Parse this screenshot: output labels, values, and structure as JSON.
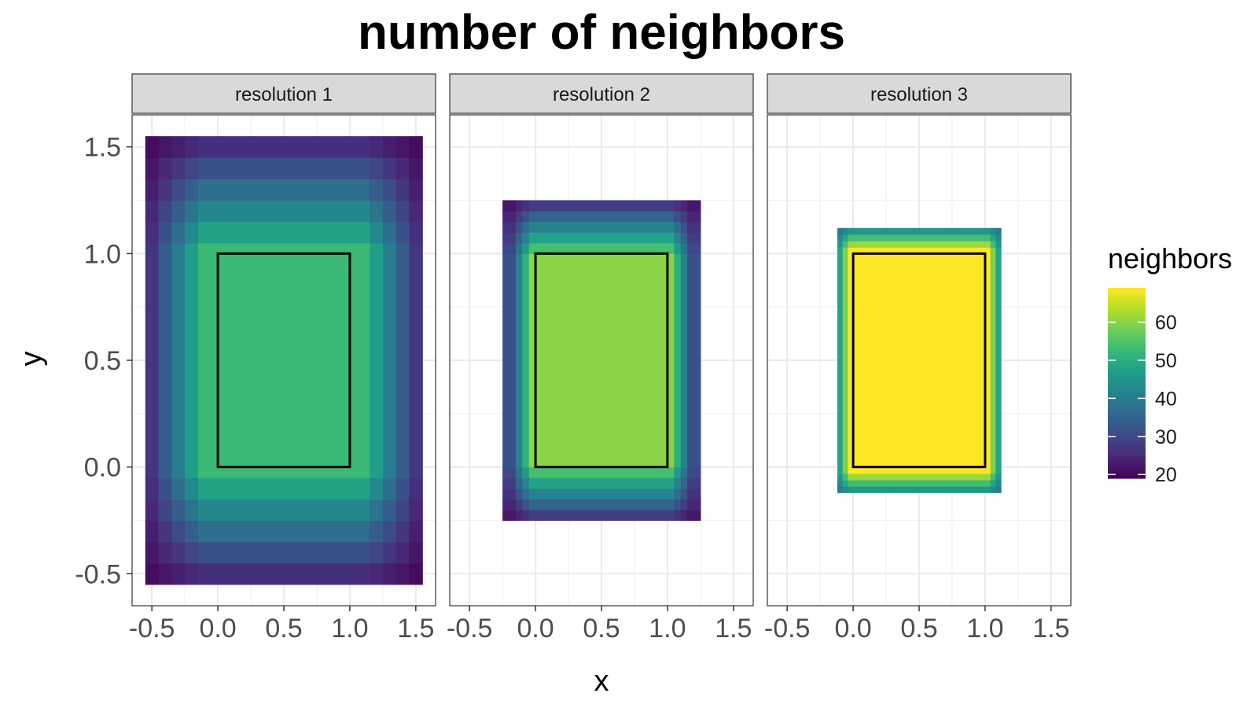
{
  "chart_data": {
    "type": "heatmap",
    "title": "number of neighbors",
    "xlabel": "x",
    "ylabel": "y",
    "xlim": [
      -0.65,
      1.65
    ],
    "ylim": [
      -0.65,
      1.65
    ],
    "x_ticks": [
      "-0.5",
      "0.0",
      "0.5",
      "1.0",
      "1.5"
    ],
    "y_ticks": [
      "-0.5",
      "0.0",
      "0.5",
      "1.0",
      "1.5"
    ],
    "x_tick_values": [
      -0.5,
      0,
      0.5,
      1,
      1.5
    ],
    "y_tick_values": [
      -0.5,
      0,
      0.5,
      1,
      1.5
    ],
    "grid": true,
    "reference_rectangle": {
      "x": [
        0,
        1
      ],
      "y": [
        0,
        1
      ]
    },
    "legend": {
      "title": "neighbors",
      "position": "right",
      "colormap": "viridis",
      "range": [
        19,
        69
      ],
      "ticks": [
        20,
        30,
        40,
        50,
        60
      ],
      "tick_labels": [
        "20",
        "30",
        "40",
        "50",
        "60"
      ]
    },
    "panels": [
      {
        "label": "resolution 1",
        "extent": {
          "x": [
            -0.55,
            1.55
          ],
          "y": [
            -0.55,
            1.55
          ]
        },
        "x_bands": [
          -0.55,
          -0.45,
          -0.35,
          -0.25,
          -0.15,
          1.15,
          1.25,
          1.35,
          1.45,
          1.55
        ],
        "y_bands": [
          -0.55,
          -0.45,
          -0.35,
          -0.25,
          -0.15,
          -0.05,
          1.05,
          1.15,
          1.25,
          1.35,
          1.45,
          1.55
        ],
        "x_values": [
          1,
          2,
          3,
          4,
          5,
          4,
          3,
          2,
          1
        ],
        "y_values": [
          1,
          2,
          3,
          4,
          5,
          6,
          5,
          4,
          3,
          2,
          1
        ],
        "neighbors_min": 19,
        "neighbors_max": 53
      },
      {
        "label": "resolution 2",
        "extent": {
          "x": [
            -0.25,
            1.25
          ],
          "y": [
            -0.25,
            1.25
          ]
        },
        "x_bands": [
          -0.25,
          -0.15,
          -0.1,
          -0.05,
          1.05,
          1.1,
          1.15,
          1.25
        ],
        "y_bands": [
          -0.25,
          -0.2,
          -0.15,
          -0.1,
          -0.05,
          0,
          1,
          1.05,
          1.1,
          1.15,
          1.2,
          1.25
        ],
        "x_values": [
          1,
          2,
          3,
          4,
          3,
          2,
          1
        ],
        "y_values": [
          1,
          2,
          3,
          4,
          5,
          6,
          5,
          4,
          3,
          2,
          1
        ],
        "neighbors_min": 20,
        "neighbors_max": 60
      },
      {
        "label": "resolution 3",
        "extent": {
          "x": [
            -0.12,
            1.12
          ],
          "y": [
            -0.12,
            1.12
          ]
        },
        "x_bands": [
          -0.12,
          -0.08,
          -0.04,
          1.04,
          1.08,
          1.12
        ],
        "y_bands": [
          -0.12,
          -0.09,
          -0.06,
          -0.03,
          1.03,
          1.06,
          1.09,
          1.12
        ],
        "x_values": [
          1,
          2,
          3,
          2,
          1
        ],
        "y_values": [
          1,
          2,
          3,
          4,
          3,
          2,
          1
        ],
        "neighbors_min": 36,
        "neighbors_max": 69
      }
    ]
  }
}
